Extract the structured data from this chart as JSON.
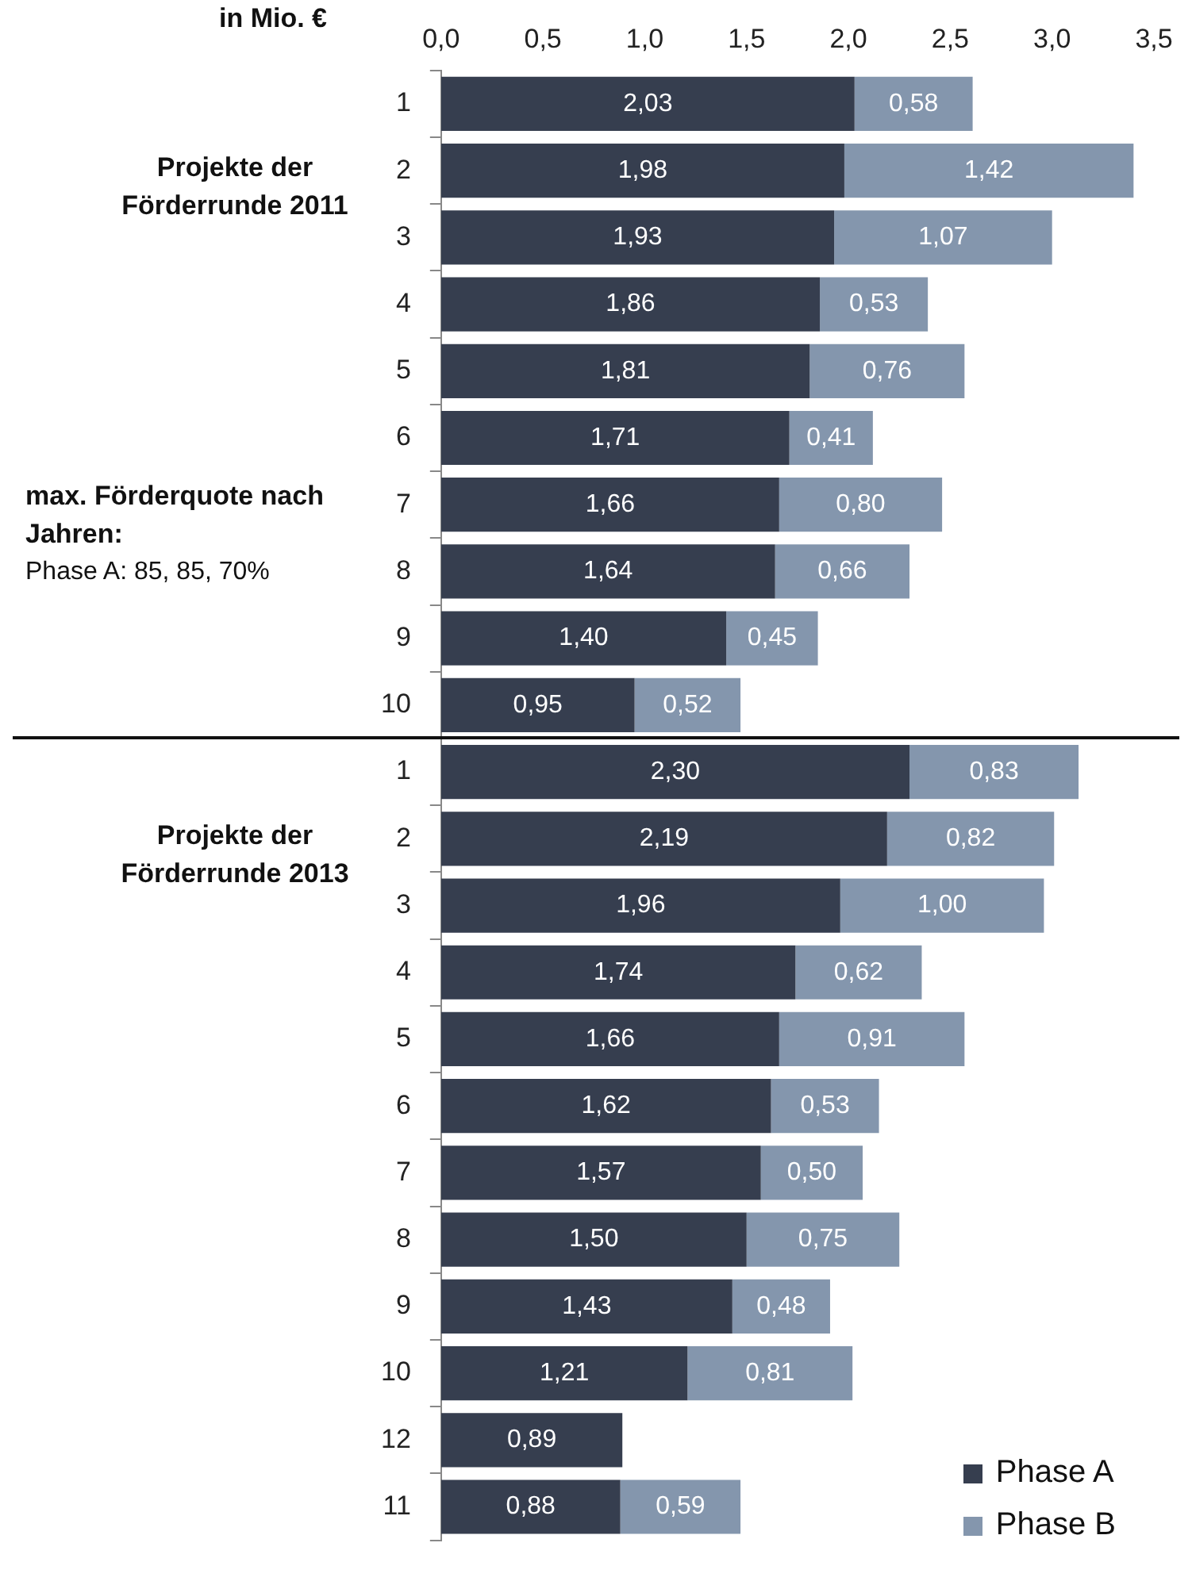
{
  "chart_data": {
    "type": "bar",
    "orientation": "horizontal",
    "stacked": true,
    "xlabel": "in Mio. €",
    "categories": [
      "1",
      "2",
      "3",
      "4",
      "5",
      "6",
      "7",
      "8",
      "9",
      "10",
      "1",
      "2",
      "3",
      "4",
      "5",
      "6",
      "7",
      "8",
      "9",
      "10",
      "12",
      "11"
    ],
    "series": [
      {
        "name": "Phase A",
        "color": "#363e4f",
        "values": [
          2.03,
          1.98,
          1.93,
          1.86,
          1.81,
          1.71,
          1.66,
          1.64,
          1.4,
          0.95,
          2.3,
          2.19,
          1.96,
          1.74,
          1.66,
          1.62,
          1.57,
          1.5,
          1.43,
          1.21,
          0.89,
          0.88
        ],
        "value_labels": [
          "2,03",
          "1,98",
          "1,93",
          "1,86",
          "1,81",
          "1,71",
          "1,66",
          "1,64",
          "1,40",
          "0,95",
          "2,30",
          "2,19",
          "1,96",
          "1,74",
          "1,66",
          "1,62",
          "1,57",
          "1,50",
          "1,43",
          "1,21",
          "0,89",
          "0,88"
        ]
      },
      {
        "name": "Phase B",
        "color": "#8496ad",
        "values": [
          0.58,
          1.42,
          1.07,
          0.53,
          0.76,
          0.41,
          0.8,
          0.66,
          0.45,
          0.52,
          0.83,
          0.82,
          1.0,
          0.62,
          0.91,
          0.53,
          0.5,
          0.75,
          0.48,
          0.81,
          null,
          0.59
        ],
        "value_labels": [
          "0,58",
          "1,42",
          "1,07",
          "0,53",
          "0,76",
          "0,41",
          "0,80",
          "0,66",
          "0,45",
          "0,52",
          "0,83",
          "0,82",
          "1,00",
          "0,62",
          "0,91",
          "0,53",
          "0,50",
          "0,75",
          "0,48",
          "0,81",
          null,
          "0,59"
        ]
      }
    ],
    "xlim": [
      0,
      3.5
    ],
    "xticks": [
      {
        "value": 0,
        "label": "0,0"
      },
      {
        "value": 0.5,
        "label": "0,5"
      },
      {
        "value": 1,
        "label": "1,0"
      },
      {
        "value": 1.5,
        "label": "1,5"
      },
      {
        "value": 2,
        "label": "2,0"
      },
      {
        "value": 2.5,
        "label": "2,5"
      },
      {
        "value": 3,
        "label": "3,0"
      },
      {
        "value": 3.5,
        "label": "3,5"
      }
    ],
    "legend": "bottom right",
    "annotations": [
      "Projekte der Förderrunde 2011",
      "max. Förderquote nach Jahren:",
      "Phase A: 85, 85, 70%",
      "Projekte der Förderrunde 2013"
    ]
  }
}
